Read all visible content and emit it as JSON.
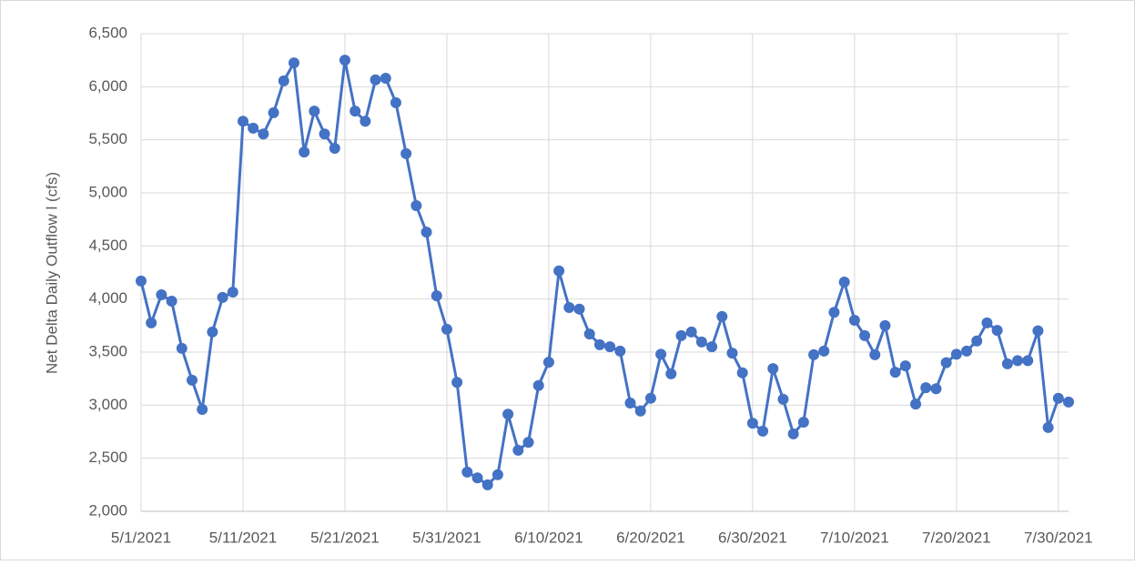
{
  "chart_data": {
    "type": "line",
    "y_label": "Net Delta Daily Outflow l (cfs)",
    "x": [
      "5/1/2021",
      "5/2/2021",
      "5/3/2021",
      "5/4/2021",
      "5/5/2021",
      "5/6/2021",
      "5/7/2021",
      "5/8/2021",
      "5/9/2021",
      "5/10/2021",
      "5/11/2021",
      "5/12/2021",
      "5/13/2021",
      "5/14/2021",
      "5/15/2021",
      "5/16/2021",
      "5/17/2021",
      "5/18/2021",
      "5/19/2021",
      "5/20/2021",
      "5/21/2021",
      "5/22/2021",
      "5/23/2021",
      "5/24/2021",
      "5/25/2021",
      "5/26/2021",
      "5/27/2021",
      "5/28/2021",
      "5/29/2021",
      "5/30/2021",
      "5/31/2021",
      "6/1/2021",
      "6/2/2021",
      "6/3/2021",
      "6/4/2021",
      "6/5/2021",
      "6/6/2021",
      "6/7/2021",
      "6/8/2021",
      "6/9/2021",
      "6/10/2021",
      "6/11/2021",
      "6/12/2021",
      "6/13/2021",
      "6/14/2021",
      "6/15/2021",
      "6/16/2021",
      "6/17/2021",
      "6/18/2021",
      "6/19/2021",
      "6/20/2021",
      "6/21/2021",
      "6/22/2021",
      "6/23/2021",
      "6/24/2021",
      "6/25/2021",
      "6/26/2021",
      "6/27/2021",
      "6/28/2021",
      "6/29/2021",
      "6/30/2021",
      "7/1/2021",
      "7/2/2021",
      "7/3/2021",
      "7/4/2021",
      "7/5/2021",
      "7/6/2021",
      "7/7/2021",
      "7/8/2021",
      "7/9/2021",
      "7/10/2021",
      "7/11/2021",
      "7/12/2021",
      "7/13/2021",
      "7/14/2021",
      "7/15/2021",
      "7/16/2021",
      "7/17/2021",
      "7/18/2021",
      "7/19/2021",
      "7/20/2021",
      "7/21/2021",
      "7/22/2021",
      "7/23/2021",
      "7/24/2021",
      "7/25/2021",
      "7/26/2021",
      "7/27/2021",
      "7/28/2021",
      "7/29/2021",
      "7/30/2021",
      "7/31/2021"
    ],
    "series": [
      {
        "color": "#4472c4",
        "values": [
          4170,
          3775,
          4040,
          3980,
          3535,
          3235,
          2960,
          3690,
          4015,
          4065,
          5675,
          5610,
          5555,
          5755,
          6055,
          6225,
          5385,
          5770,
          5555,
          5420,
          6250,
          5770,
          5675,
          6065,
          6080,
          5850,
          5370,
          4880,
          4630,
          4030,
          3715,
          3215,
          2370,
          2315,
          2250,
          2345,
          2915,
          2575,
          2650,
          3185,
          3405,
          4265,
          3920,
          3905,
          3670,
          3570,
          3550,
          3510,
          3020,
          2945,
          3065,
          3480,
          3295,
          3655,
          3690,
          3595,
          3550,
          3835,
          3490,
          3305,
          2830,
          2755,
          3345,
          3055,
          2730,
          2840,
          3475,
          3510,
          3875,
          4160,
          3800,
          3655,
          3475,
          3750,
          3310,
          3370,
          3010,
          3165,
          3155,
          3400,
          3480,
          3510,
          3605,
          3775,
          3705,
          3390,
          3420,
          3420,
          3700,
          2790,
          3065,
          3030
        ]
      }
    ],
    "xlim": [
      "5/1/2021",
      "7/31/2021"
    ],
    "xticks": [
      "5/1/2021",
      "5/11/2021",
      "5/21/2021",
      "5/31/2021",
      "6/10/2021",
      "6/20/2021",
      "6/30/2021",
      "7/10/2021",
      "7/20/2021",
      "7/30/2021"
    ],
    "ylim": [
      2000,
      6500
    ],
    "yticks": [
      {
        "value": 2000,
        "label": "2,000"
      },
      {
        "value": 2500,
        "label": "2,500"
      },
      {
        "value": 3000,
        "label": "3,000"
      },
      {
        "value": 3500,
        "label": "3,500"
      },
      {
        "value": 4000,
        "label": "4,000"
      },
      {
        "value": 4500,
        "label": "4,500"
      },
      {
        "value": 5000,
        "label": "5,000"
      },
      {
        "value": 5500,
        "label": "5,500"
      },
      {
        "value": 6000,
        "label": "6,000"
      },
      {
        "value": 6500,
        "label": "6,500"
      }
    ],
    "grid": true
  }
}
